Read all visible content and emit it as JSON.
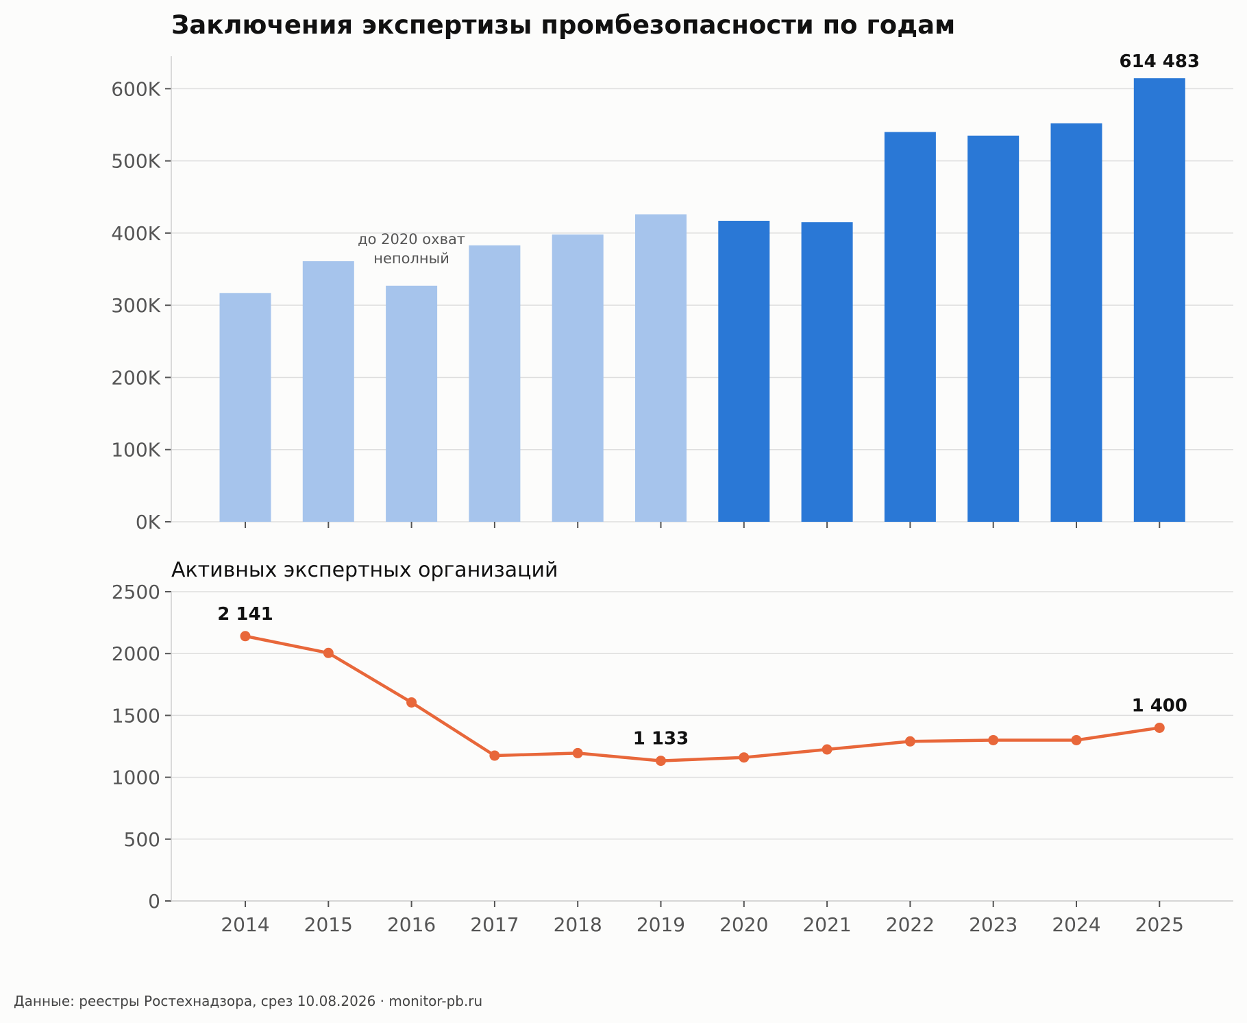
{
  "title": "Заключения экспертизы промбезопасности по годам",
  "source": "Данные: реестры Ростехнадзора, срез 10.08.2026 · monitor-pb.ru",
  "chart_data": [
    {
      "type": "bar",
      "title": "Заключения экспертизы промбезопасности по годам",
      "categories": [
        "2014",
        "2015",
        "2016",
        "2017",
        "2018",
        "2019",
        "2020",
        "2021",
        "2022",
        "2023",
        "2024",
        "2025"
      ],
      "values": [
        317000,
        361000,
        327000,
        383000,
        398000,
        426000,
        417000,
        415000,
        540000,
        535000,
        552000,
        614483
      ],
      "ylim": [
        0,
        645000
      ],
      "yticks": [
        0,
        100000,
        200000,
        300000,
        400000,
        500000,
        600000
      ],
      "ytick_labels": [
        "0K",
        "100K",
        "200K",
        "300K",
        "400K",
        "500K",
        "600K"
      ],
      "colors": {
        "incomplete": "#a6c4ec",
        "full": "#2a78d6"
      },
      "incomplete_before": "2020",
      "annotation": {
        "text_lines": [
          "до 2020 охват",
          "неполный"
        ]
      },
      "data_labels": [
        {
          "category": "2025",
          "text": "614 483"
        }
      ],
      "grid": true
    },
    {
      "type": "line",
      "title": "Активных экспертных организаций",
      "x": [
        "2014",
        "2015",
        "2016",
        "2017",
        "2018",
        "2019",
        "2020",
        "2021",
        "2022",
        "2023",
        "2024",
        "2025"
      ],
      "values": [
        2141,
        2005,
        1605,
        1175,
        1195,
        1133,
        1160,
        1225,
        1290,
        1300,
        1300,
        1400
      ],
      "ylim": [
        0,
        2500
      ],
      "yticks": [
        0,
        500,
        1000,
        1500,
        2000,
        2500
      ],
      "ytick_labels": [
        "0",
        "500",
        "1000",
        "1500",
        "2000",
        "2500"
      ],
      "color": "#e8673a",
      "data_labels": [
        {
          "x": "2014",
          "text": "2 141"
        },
        {
          "x": "2019",
          "text": "1 133"
        },
        {
          "x": "2025",
          "text": "1 400"
        }
      ],
      "grid": true
    }
  ]
}
